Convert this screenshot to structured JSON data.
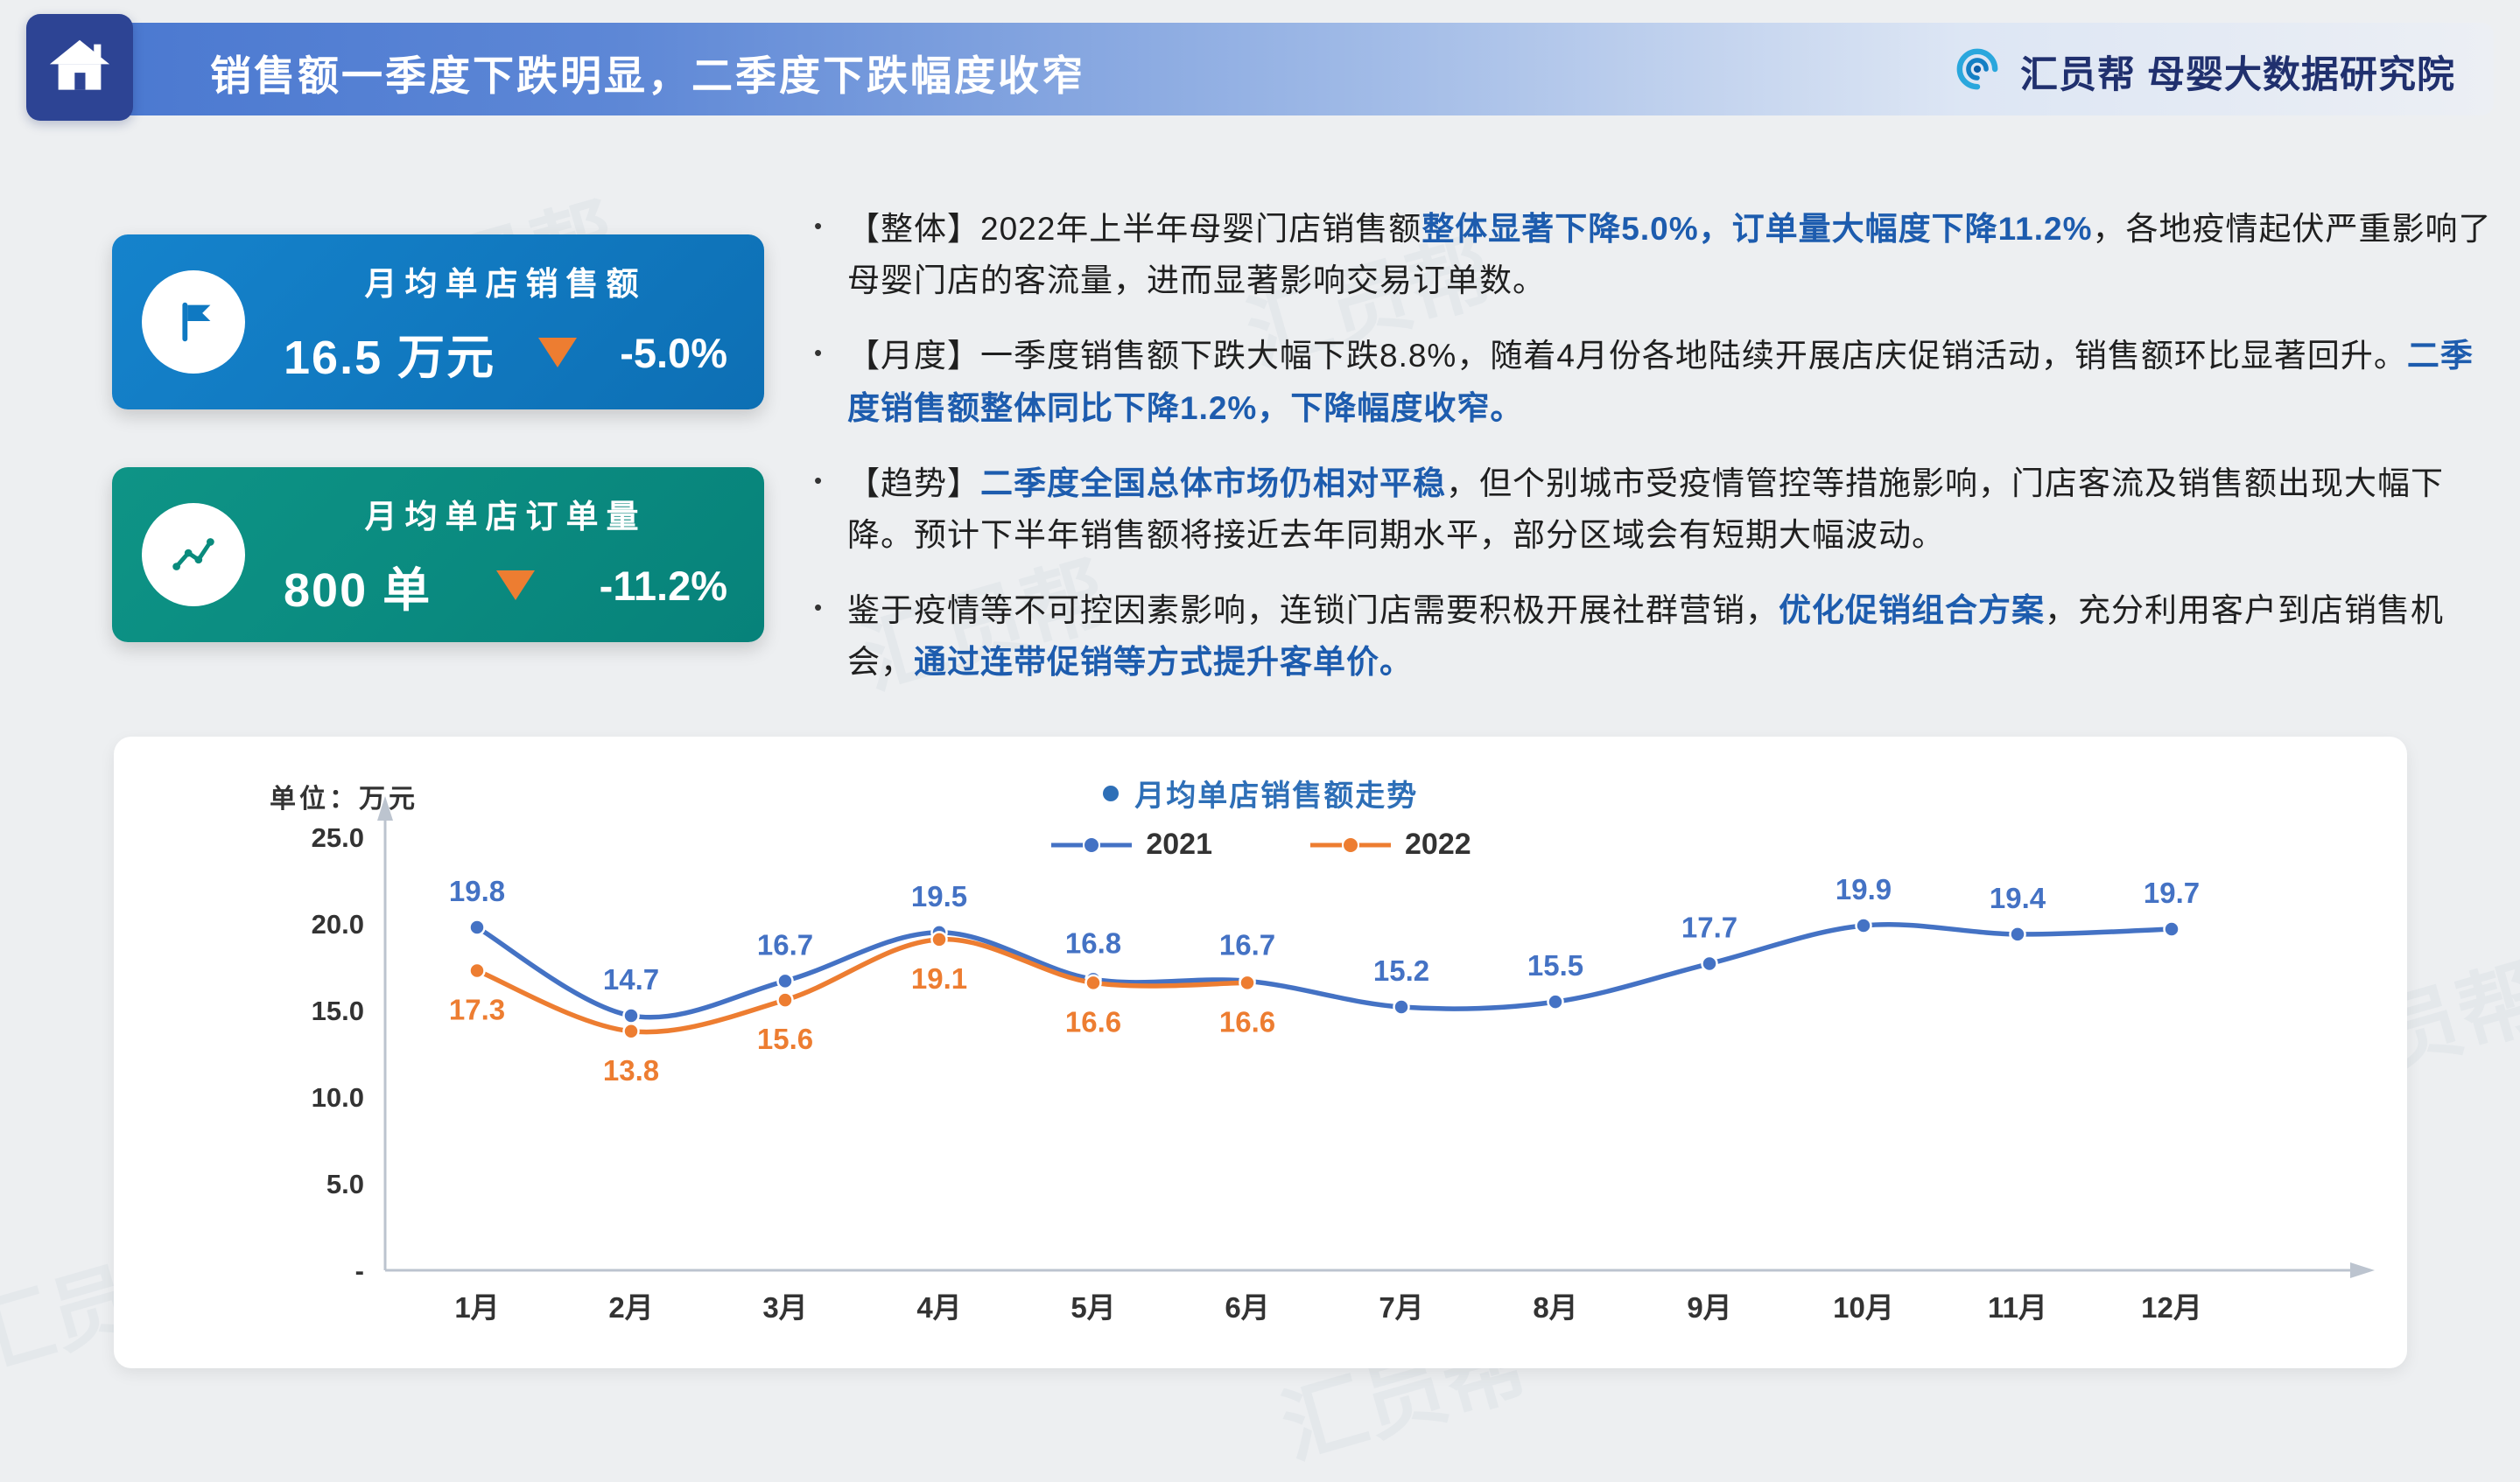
{
  "header": {
    "title": "销售额一季度下跌明显，二季度下跌幅度收窄",
    "brand_text": "汇员帮 母婴大数据研究院"
  },
  "kpis": [
    {
      "label": "月均单店销售额",
      "value": "16.5 万元",
      "delta": "-5.0%",
      "color": "#0f79c2"
    },
    {
      "label": "月均单店订单量",
      "value": "800 单",
      "delta": "-11.2%",
      "color": "#0a8b7d"
    }
  ],
  "bullets": [
    {
      "segments": [
        {
          "t": "【整体】2022年上半年母婴门店销售额",
          "h": false
        },
        {
          "t": "整体显著下降5.0%，订单量大幅度下降11.2%",
          "h": true
        },
        {
          "t": "，各地疫情起伏严重影响了母婴门店的客流量，进而显著影响交易订单数。",
          "h": false
        }
      ]
    },
    {
      "segments": [
        {
          "t": "【月度】一季度销售额下跌大幅下跌8.8%，随着4月份各地陆续开展店庆促销活动，销售额环比显著回升。",
          "h": false
        },
        {
          "t": "二季度销售额整体同比下降1.2%，下降幅度收窄。",
          "h": true
        }
      ]
    },
    {
      "segments": [
        {
          "t": "【趋势】",
          "h": false
        },
        {
          "t": "二季度全国总体市场仍相对平稳",
          "h": true
        },
        {
          "t": "，但个别城市受疫情管控等措施影响，门店客流及销售额出现大幅下降。预计下半年销售额将接近去年同期水平，部分区域会有短期大幅波动。",
          "h": false
        }
      ]
    },
    {
      "segments": [
        {
          "t": "鉴于疫情等不可控因素影响，连锁门店需要积极开展社群营销，",
          "h": false
        },
        {
          "t": "优化促销组合方案",
          "h": true
        },
        {
          "t": "，充分利用客户到店销售机会，",
          "h": false
        },
        {
          "t": "通过连带促销等方式提升客单价。",
          "h": true
        }
      ]
    }
  ],
  "chart_data": {
    "type": "line",
    "title": "月均单店销售额走势",
    "unit_label": "单位：万元",
    "categories": [
      "1月",
      "2月",
      "3月",
      "4月",
      "5月",
      "6月",
      "7月",
      "8月",
      "9月",
      "10月",
      "11月",
      "12月"
    ],
    "series": [
      {
        "name": "2021",
        "color": "#4472c4",
        "values": [
          19.8,
          14.7,
          16.7,
          19.5,
          16.8,
          16.7,
          15.2,
          15.5,
          17.7,
          19.9,
          19.4,
          19.7
        ]
      },
      {
        "name": "2022",
        "color": "#ed7d31",
        "values": [
          17.3,
          13.8,
          15.6,
          19.1,
          16.6,
          16.6
        ]
      }
    ],
    "y_ticks": [
      "25.0",
      "20.0",
      "15.0",
      "10.0",
      "5.0",
      "-"
    ],
    "ylim": [
      0,
      25
    ],
    "grid": false,
    "legend_position": "top"
  },
  "colors": {
    "highlight_text": "#1d5cae",
    "delta_triangle": "#ed7d31",
    "header_bar": "#4a78d0",
    "kpi_blue": "#0f79c2",
    "kpi_teal": "#0a8b7d"
  },
  "watermark": {
    "text": "汇员帮"
  }
}
